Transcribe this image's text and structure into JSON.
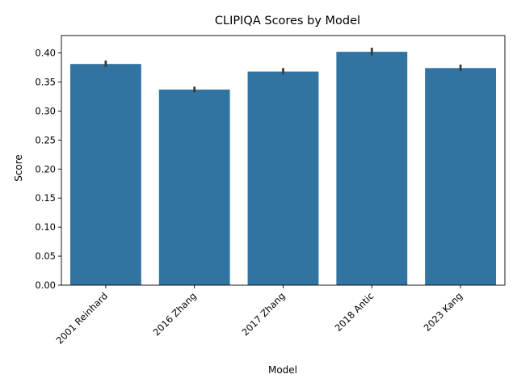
{
  "chart_data": {
    "type": "bar",
    "title": "CLIPIQA Scores by Model",
    "xlabel": "Model",
    "ylabel": "Score",
    "categories": [
      "2001 Reinhard",
      "2016 Zhang",
      "2017 Zhang",
      "2018 Antic",
      "2023 Kang"
    ],
    "values": [
      0.381,
      0.337,
      0.368,
      0.402,
      0.374
    ],
    "error_low": [
      0.376,
      0.332,
      0.363,
      0.396,
      0.369
    ],
    "error_high": [
      0.387,
      0.342,
      0.374,
      0.409,
      0.38
    ],
    "ylim": [
      0,
      0.43
    ],
    "yticks": [
      0.0,
      0.05,
      0.1,
      0.15,
      0.2,
      0.25,
      0.3,
      0.35,
      0.4
    ],
    "ytick_labels": [
      "0.00",
      "0.05",
      "0.10",
      "0.15",
      "0.20",
      "0.25",
      "0.30",
      "0.35",
      "0.40"
    ],
    "bar_color": "#3274a1",
    "error_color": "#3b3b3b",
    "grid": false,
    "legend": "none"
  }
}
